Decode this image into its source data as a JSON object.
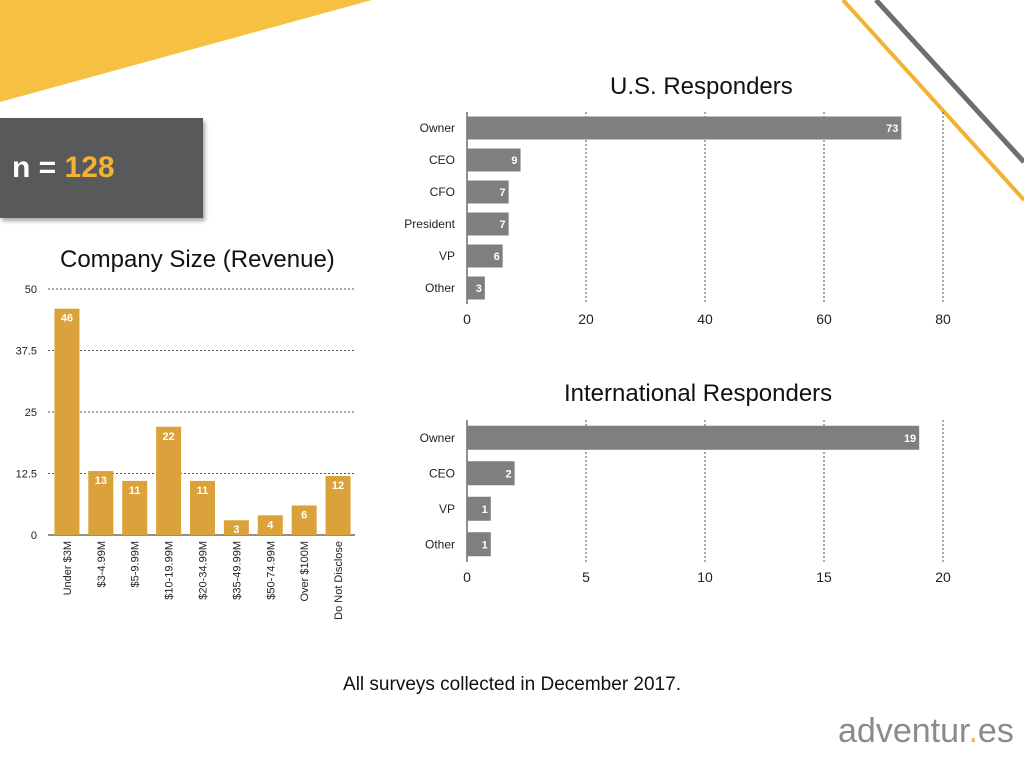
{
  "colors": {
    "accent": "#f2b234",
    "bar_gray": "#7f7f7f",
    "box_gray": "#58595b",
    "bar_gold": "#dba23b"
  },
  "sample": {
    "label": "n = ",
    "value": "128"
  },
  "footnote": "All surveys collected in December 2017.",
  "logo": {
    "before": "adventur",
    "dot": ".",
    "after": "es"
  },
  "chart_data": [
    {
      "id": "company-size",
      "type": "bar",
      "orientation": "vertical",
      "title": "Company Size (Revenue)",
      "categories": [
        "Under $3M",
        "$3-4.99M",
        "$5-9.99M",
        "$10-19.99M",
        "$20-34.99M",
        "$35-49.99M",
        "$50-74.99M",
        "Over $100M",
        "Do Not Disclose"
      ],
      "values": [
        46,
        13,
        11,
        22,
        11,
        3,
        4,
        6,
        12
      ],
      "ylim": [
        0,
        50
      ],
      "yticks": [
        "0",
        "12.5",
        "25",
        "37.5",
        "50"
      ],
      "grid": true,
      "data_labels": true
    },
    {
      "id": "us-responders",
      "type": "bar",
      "orientation": "horizontal",
      "title": "U.S. Responders",
      "categories": [
        "Owner",
        "CEO",
        "CFO",
        "President",
        "VP",
        "Other"
      ],
      "values": [
        73,
        9,
        7,
        7,
        6,
        3
      ],
      "xlim": [
        0,
        80
      ],
      "xticks": [
        "0",
        "20",
        "40",
        "60",
        "80"
      ],
      "grid": true,
      "data_labels": true
    },
    {
      "id": "intl-responders",
      "type": "bar",
      "orientation": "horizontal",
      "title": "International Responders",
      "categories": [
        "Owner",
        "CEO",
        "VP",
        "Other"
      ],
      "values": [
        19,
        2,
        1,
        1
      ],
      "xlim": [
        0,
        20
      ],
      "xticks": [
        "0",
        "5",
        "10",
        "15",
        "20"
      ],
      "grid": true,
      "data_labels": true
    }
  ]
}
